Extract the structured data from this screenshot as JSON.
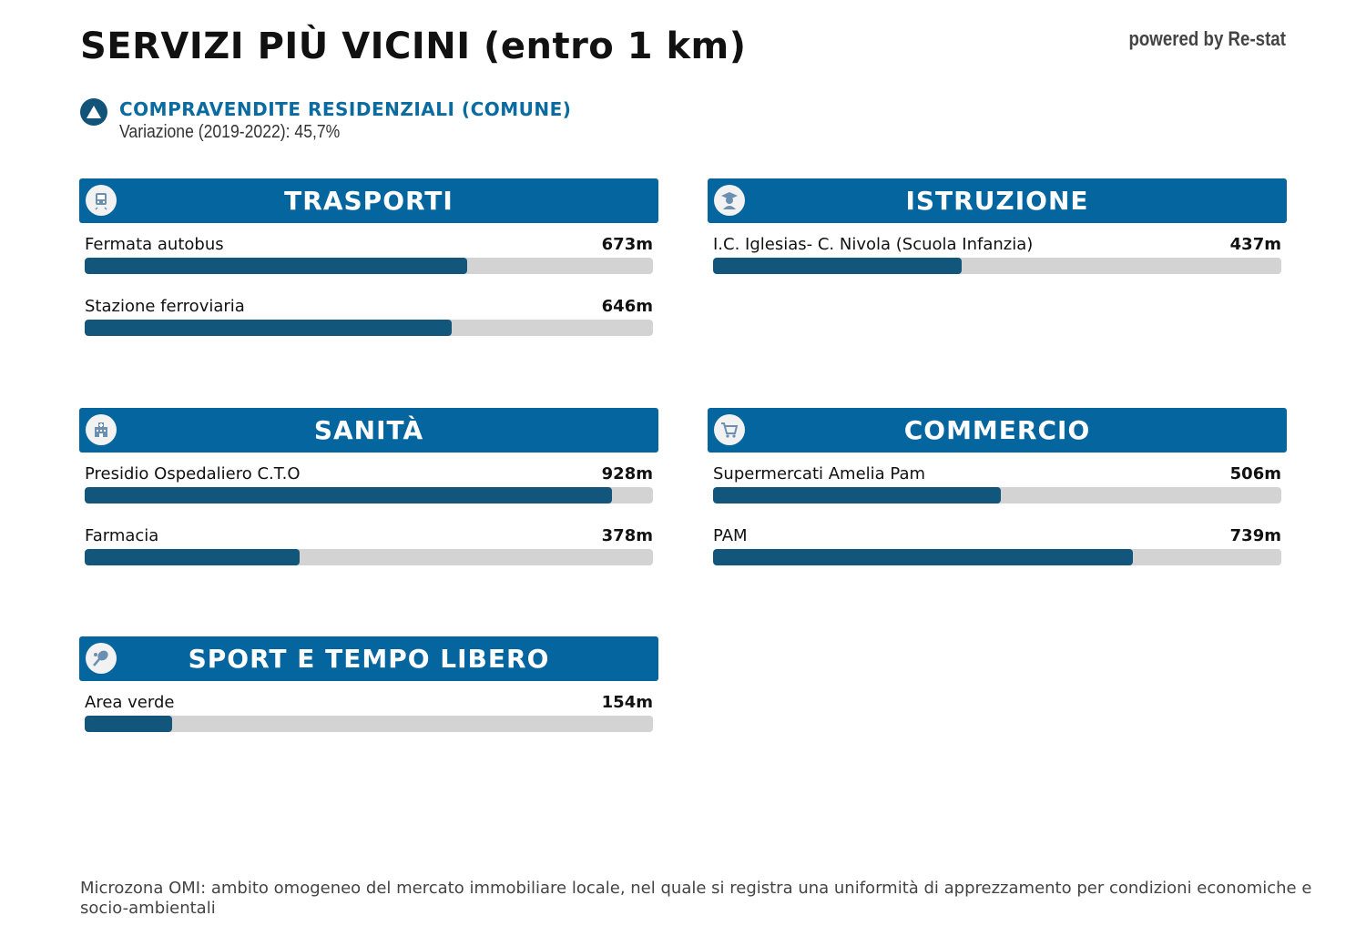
{
  "title": "SERVIZI PIÙ VICINI (entro 1 km)",
  "powered_by": "powered by Re-stat",
  "trend": {
    "icon": "triangle-up-icon",
    "title": "COMPRAVENDITE RESIDENZIALI (COMUNE)",
    "subtitle": "Variazione (2019-2022): 45,7%"
  },
  "max_distance_m": 1000,
  "colors": {
    "header": "#05669f",
    "bar_fill": "#12567c",
    "bar_track": "#d3d3d3",
    "accent_text": "#0a6ba0"
  },
  "cards": {
    "trasporti": {
      "title": "TRASPORTI",
      "icon": "train-icon",
      "items": [
        {
          "name": "Fermata autobus",
          "distance_label": "673m",
          "distance": 673
        },
        {
          "name": "Stazione ferroviaria",
          "distance_label": "646m",
          "distance": 646
        }
      ]
    },
    "istruzione": {
      "title": "ISTRUZIONE",
      "icon": "student-icon",
      "items": [
        {
          "name": "I.C. Iglesias- C. Nivola (Scuola Infanzia)",
          "distance_label": "437m",
          "distance": 437
        }
      ]
    },
    "sanita": {
      "title": "SANITÀ",
      "icon": "hospital-icon",
      "items": [
        {
          "name": "Presidio Ospedaliero C.T.O",
          "distance_label": "928m",
          "distance": 928
        },
        {
          "name": "Farmacia",
          "distance_label": "378m",
          "distance": 378
        }
      ]
    },
    "commercio": {
      "title": "COMMERCIO",
      "icon": "shopping-cart-icon",
      "items": [
        {
          "name": "Supermercati Amelia Pam",
          "distance_label": "506m",
          "distance": 506
        },
        {
          "name": "PAM",
          "distance_label": "739m",
          "distance": 739
        }
      ]
    },
    "sport": {
      "title": "SPORT E TEMPO LIBERO",
      "icon": "tennis-racket-icon",
      "items": [
        {
          "name": "Area verde",
          "distance_label": "154m",
          "distance": 154
        }
      ]
    }
  },
  "footer": "Microzona OMI: ambito omogeneo del mercato immobiliare locale, nel quale si registra una uniformità di apprezzamento per condizioni economiche e socio-ambientali"
}
